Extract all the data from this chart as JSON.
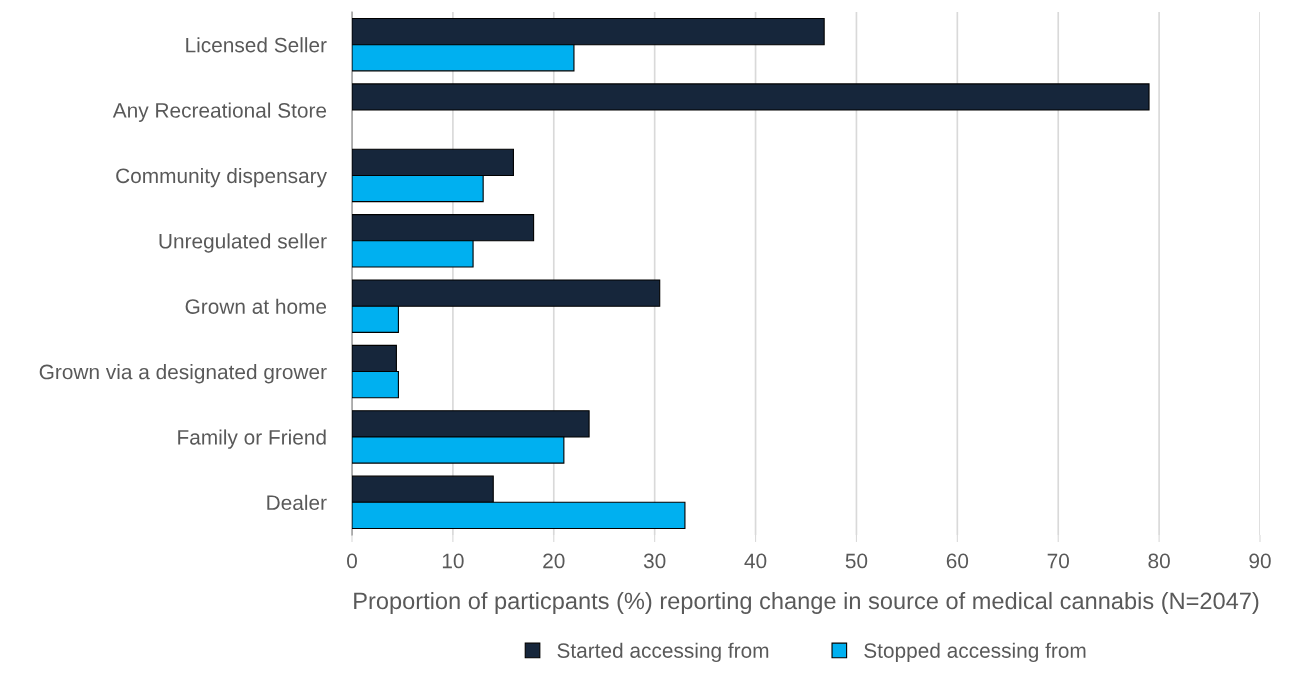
{
  "chart_data": {
    "type": "bar",
    "orientation": "horizontal",
    "xlabel": "Proportion of particpants (%) reporting change in source of medical cannabis (N=2047)",
    "categories": [
      "Licensed Seller",
      "Any Recreational Store",
      "Community dispensary",
      "Unregulated seller",
      "Grown at home",
      "Grown via a designated grower",
      "Family or Friend",
      "Dealer"
    ],
    "series": [
      {
        "name": "Started accessing from",
        "color": "#16263b",
        "values": [
          46.8,
          79.0,
          16.0,
          18.0,
          30.5,
          4.4,
          23.5,
          14.0
        ]
      },
      {
        "name": "Stopped accessing from",
        "color": "#00b0f0",
        "values": [
          22.0,
          null,
          13.0,
          12.0,
          4.6,
          4.6,
          21.0,
          33.0
        ]
      }
    ],
    "xlim": [
      0,
      90
    ],
    "xticks": [
      0,
      10,
      20,
      30,
      40,
      50,
      60,
      70,
      80,
      90
    ],
    "grid": "x",
    "legend": "bottom"
  }
}
